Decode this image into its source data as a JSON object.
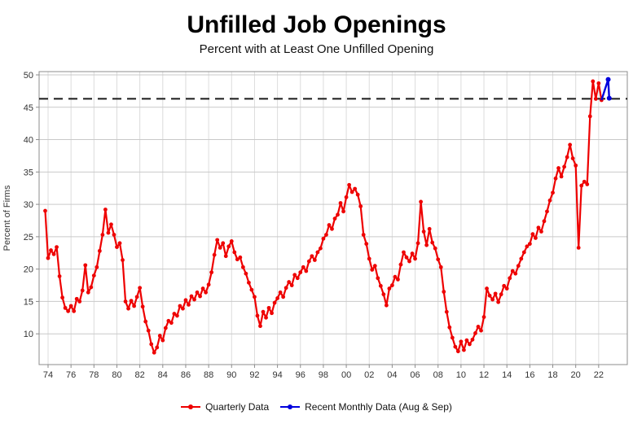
{
  "header": {
    "title": "Unfilled Job Openings",
    "subtitle": "Percent with at Least One Unfilled Opening"
  },
  "chart_data": {
    "type": "line",
    "title": "Unfilled Job Openings",
    "subtitle": "Percent with at Least One Unfilled Opening",
    "xlabel": "",
    "ylabel": "Percent of Firms",
    "grid": true,
    "legend_position": "bottom",
    "ylim": [
      5.3,
      50.5
    ],
    "xlim": [
      1973.2,
      2024.6
    ],
    "y_ticks": [
      10,
      15,
      20,
      25,
      30,
      35,
      40,
      45,
      50
    ],
    "x_tick_years": [
      1974,
      1976,
      1978,
      1980,
      1982,
      1984,
      1986,
      1988,
      1990,
      1992,
      1994,
      1996,
      1998,
      2000,
      2002,
      2004,
      2006,
      2008,
      2010,
      2012,
      2014,
      2016,
      2018,
      2020,
      2022
    ],
    "x_tick_labels": [
      "74",
      "76",
      "78",
      "80",
      "82",
      "84",
      "86",
      "88",
      "90",
      "92",
      "94",
      "96",
      "98",
      "00",
      "02",
      "04",
      "06",
      "08",
      "10",
      "12",
      "14",
      "16",
      "18",
      "20",
      "22"
    ],
    "reference_line": {
      "value": 46.3,
      "style": "dashed",
      "color": "#1a1a1a"
    },
    "series": [
      {
        "name": "Quarterly Data",
        "color": "#ee0000",
        "marker": "circle",
        "start_year": 1973.75,
        "step_years": 0.25,
        "values": [
          29.0,
          21.7,
          22.9,
          22.3,
          23.4,
          18.9,
          15.6,
          14.0,
          13.5,
          14.3,
          13.5,
          15.4,
          15.0,
          16.7,
          20.6,
          16.4,
          17.2,
          19.0,
          20.3,
          22.8,
          25.3,
          29.2,
          25.6,
          26.9,
          25.3,
          23.4,
          24.0,
          21.4,
          15.0,
          13.9,
          15.1,
          14.3,
          15.7,
          17.1,
          14.2,
          11.9,
          10.5,
          8.4,
          7.1,
          7.9,
          9.7,
          9.0,
          10.9,
          12.0,
          11.7,
          13.1,
          12.8,
          14.3,
          13.9,
          15.2,
          14.5,
          15.8,
          15.3,
          16.4,
          15.8,
          17.0,
          16.4,
          17.6,
          19.5,
          22.2,
          24.5,
          23.3,
          24.0,
          22.0,
          23.5,
          24.3,
          22.6,
          21.5,
          21.8,
          20.3,
          19.3,
          17.9,
          16.8,
          15.7,
          12.8,
          11.2,
          13.4,
          12.5,
          14.0,
          13.2,
          14.8,
          15.5,
          16.4,
          15.7,
          17.1,
          18.0,
          17.5,
          19.1,
          18.6,
          19.5,
          20.3,
          19.7,
          21.2,
          22.0,
          21.4,
          22.6,
          23.2,
          24.7,
          25.3,
          26.8,
          26.2,
          27.8,
          28.4,
          30.2,
          28.9,
          31.1,
          33.0,
          31.9,
          32.4,
          31.5,
          29.7,
          25.3,
          23.9,
          21.6,
          19.9,
          20.5,
          18.6,
          17.4,
          16.1,
          14.4,
          17.0,
          17.5,
          18.8,
          18.4,
          20.7,
          22.6,
          21.8,
          21.2,
          22.4,
          21.6,
          24.0,
          30.4,
          25.8,
          23.7,
          26.2,
          24.1,
          23.2,
          21.5,
          20.3,
          16.5,
          13.4,
          11.0,
          9.4,
          8.0,
          7.3,
          8.8,
          7.5,
          9.0,
          8.4,
          9.1,
          10.1,
          11.1,
          10.5,
          12.6,
          17.0,
          15.9,
          15.3,
          16.2,
          14.9,
          16.1,
          17.4,
          17.0,
          18.6,
          19.7,
          19.3,
          20.5,
          21.6,
          22.6,
          23.5,
          23.9,
          25.4,
          24.8,
          26.4,
          25.8,
          27.4,
          28.9,
          30.6,
          31.8,
          34.0,
          35.6,
          34.3,
          35.8,
          37.3,
          39.2,
          37.1,
          36.0,
          23.3,
          32.9,
          33.5,
          33.1,
          43.6,
          49.0,
          46.3,
          48.7,
          46.1
        ]
      },
      {
        "name": "Recent Monthly Data (Aug & Sep)",
        "color": "#0000dd",
        "marker": "circle",
        "x": [
          2022.83,
          2022.92
        ],
        "values": [
          49.3,
          46.4
        ],
        "connects_from_previous": true
      }
    ]
  },
  "legend": {
    "items": [
      {
        "label": "Quarterly Data",
        "color": "#ee0000"
      },
      {
        "label": "Recent Monthly Data (Aug & Sep)",
        "color": "#0000dd"
      }
    ]
  },
  "style": {
    "grid_color_h": "#c9c9c9",
    "grid_color_v": "#dcdcdc",
    "spine_color": "#8c8c8c",
    "tick_label_color": "#333333"
  }
}
